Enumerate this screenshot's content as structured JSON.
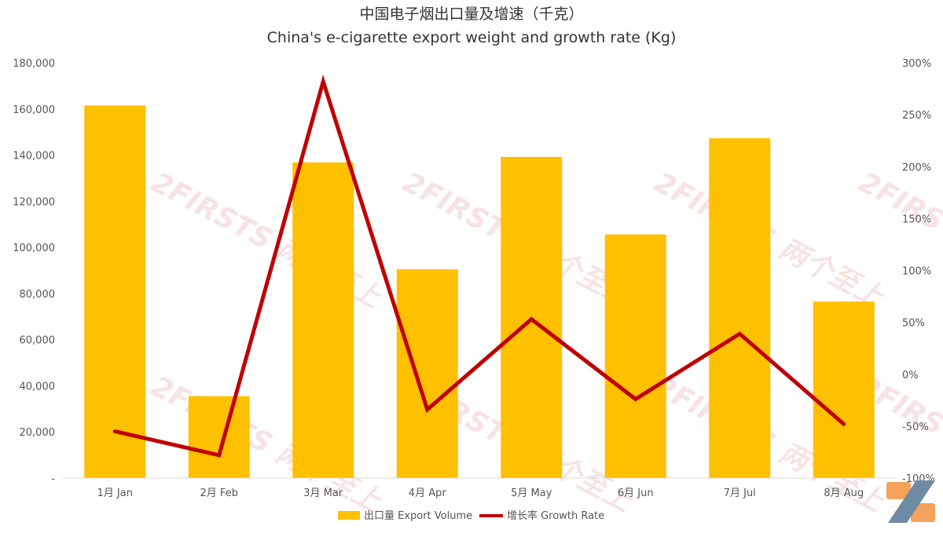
{
  "chart_data": {
    "type": "bar",
    "title": "中国电子烟出口量及增速（千克）",
    "subtitle": "China's e-cigarette export weight and growth rate (Kg)",
    "categories": [
      "1月 Jan",
      "2月 Feb",
      "3月 Mar",
      "4月 Apr",
      "5月 May",
      "6月 Jun",
      "7月 Jul",
      "8月 Aug"
    ],
    "series": [
      {
        "name": "出口量 Export Volume",
        "type": "bar",
        "axis": "left",
        "color": "#FFC000",
        "values": [
          161500,
          35500,
          136800,
          90500,
          139200,
          105600,
          147300,
          76500
        ]
      },
      {
        "name": "增长率 Growth Rate",
        "type": "line",
        "axis": "right",
        "color": "#C00000",
        "values": [
          -55,
          -78,
          282,
          -34,
          53,
          -24,
          39,
          -48
        ]
      }
    ],
    "y_left": {
      "ylim": [
        0,
        180000
      ],
      "ticks": [
        "-",
        "20,000",
        "40,000",
        "60,000",
        "80,000",
        "100,000",
        "120,000",
        "140,000",
        "160,000",
        "180,000"
      ]
    },
    "y_right": {
      "ylim": [
        -100,
        300
      ],
      "ticks": [
        "-100%",
        "-50%",
        "0%",
        "50%",
        "100%",
        "150%",
        "200%",
        "250%",
        "300%"
      ]
    },
    "grid": false,
    "legend_position": "bottom"
  },
  "watermark": {
    "text": "2FIRSTS 两个至上"
  },
  "colors": {
    "logo_orange": "#F5A25D",
    "logo_blue": "#6F8BA4"
  }
}
